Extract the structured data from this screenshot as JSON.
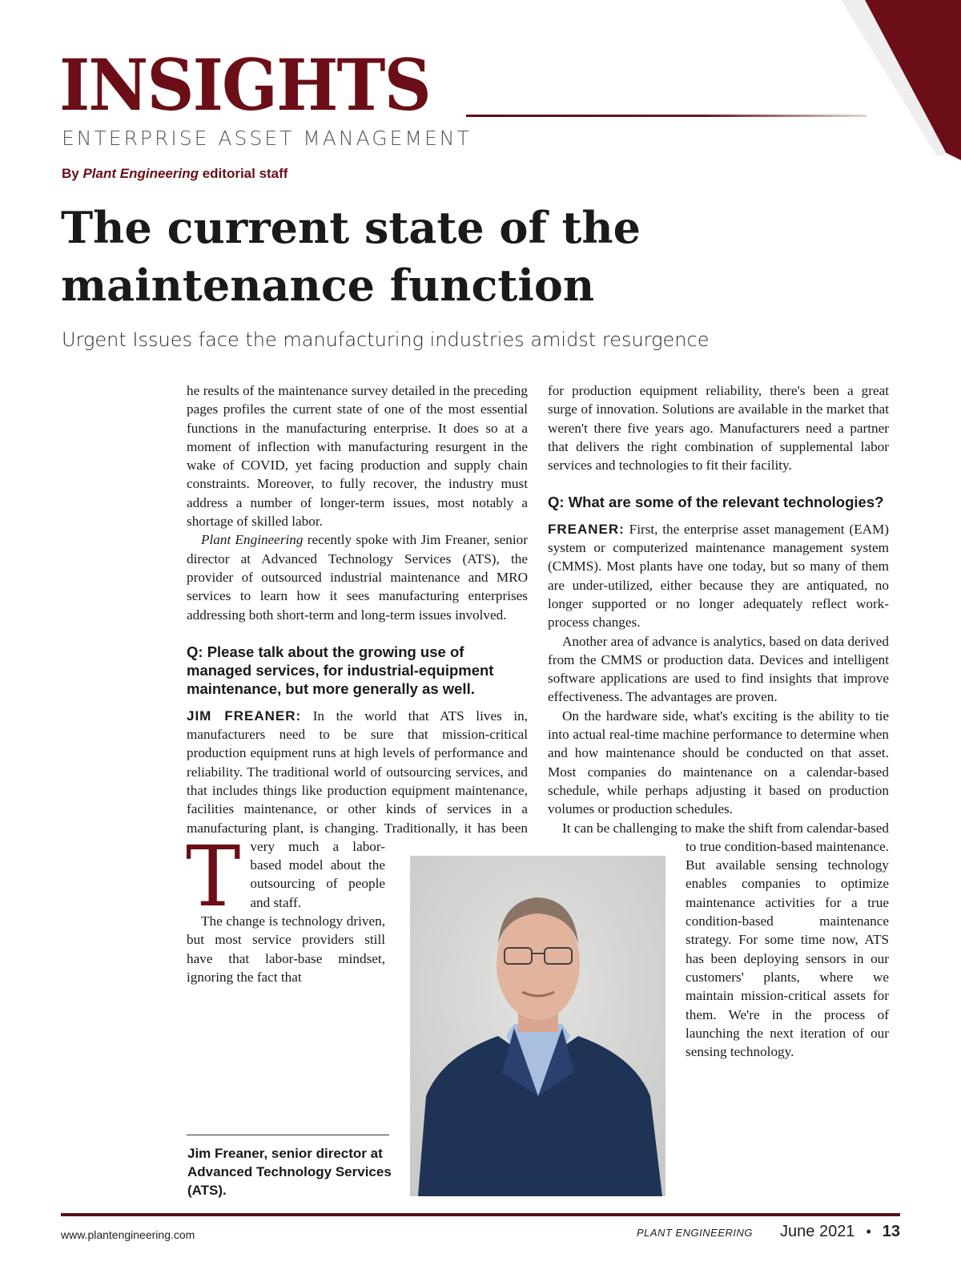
{
  "header": {
    "kicker": "INSIGHTS",
    "section": "ENTERPRISE ASSET MANAGEMENT",
    "byline_prefix": "By ",
    "byline_pub": "Plant Engineering",
    "byline_suffix": " editorial staff",
    "accent_color": "#6b0e17"
  },
  "article": {
    "headline": "The current state of the maintenance function",
    "dek": "Urgent Issues face the manufacturing industries amidst resurgence",
    "dropcap": "T",
    "p1": "he results of the maintenance survey detailed in the preceding pages profiles the current state of one of the most essential functions in the manufacturing enterprise. It does so at a moment of inflection with manufacturing resurgent in the wake of COVID, yet facing production and supply chain constraints. Moreover, to fully recover, the industry must address a number of longer-term issues, most notably a shortage of skilled labor.",
    "p2_italic": "Plant Engineering",
    "p2": " recently spoke with Jim Freaner, senior director at Advanced Technology Services (ATS), the provider of outsourced industrial maintenance and MRO services to learn how it sees manufacturing enterprises addressing both short-term and long-term issues involved.",
    "q1": "Q: Please talk about the growing use of managed services, for industrial-equipment maintenance, but more generally as well.",
    "a1_speaker": "JIM FREANER:",
    "a1": " In the world that ATS lives in, manufacturers need to be sure that mission-critical production equipment runs at high levels of performance and reliability. The traditional world of outsourcing services, and that includes things like production equipment maintenance, facilities maintenance, or other kinds of services in a manufacturing plant, is changing. Traditionally, it has been very much a labor-based model about the outsourcing of people and staff.",
    "p3": "The change is technology driven, but most service providers still have that labor-base mindset, ignoring the fact that",
    "p4": "for production equipment reliability, there's been a great surge of innovation. Solutions are available in the market that weren't there five years ago. Manufacturers need a partner that delivers the right combination of supplemental labor services and technologies to fit their facility.",
    "q2": "Q: What are some of the relevant technologies?",
    "a2_speaker": "FREANER:",
    "a2": " First, the enterprise asset management (EAM) system or computerized maintenance management system (CMMS). Most plants have one today, but so many of them are under-utilized, either because they are antiquated, no longer supported or no longer adequately reflect work-process changes.",
    "p5": "Another area of advance is analytics, based on data derived from the CMMS or production data. Devices and intelligent software applications are used to find insights that improve effectiveness. The advantages are proven.",
    "p6": "On the hardware side, what's exciting is the ability to tie into actual real-time machine performance to determine when and how maintenance should be conducted on that asset. Most companies do maintenance on a calendar-based schedule, while perhaps adjusting it based on production volumes or production schedules.",
    "p7": "It can be challenging to make the shift from calendar-based to true condition-based maintenance. But available sensing technology enables companies to optimize maintenance activities for a true condition-based maintenance strategy. For some time now, ATS has been deploying sensors in our customers' plants, where we maintain mission-critical assets for them. We're in the process of launching the next iteration of our sensing technology.",
    "caption": "Jim Freaner, senior director at Advanced Technology Services (ATS)."
  },
  "footer": {
    "url": "www.plantengineering.com",
    "publication": "PLANT ENGINEERING",
    "date": "June 2021",
    "separator": "•",
    "page": "13"
  }
}
